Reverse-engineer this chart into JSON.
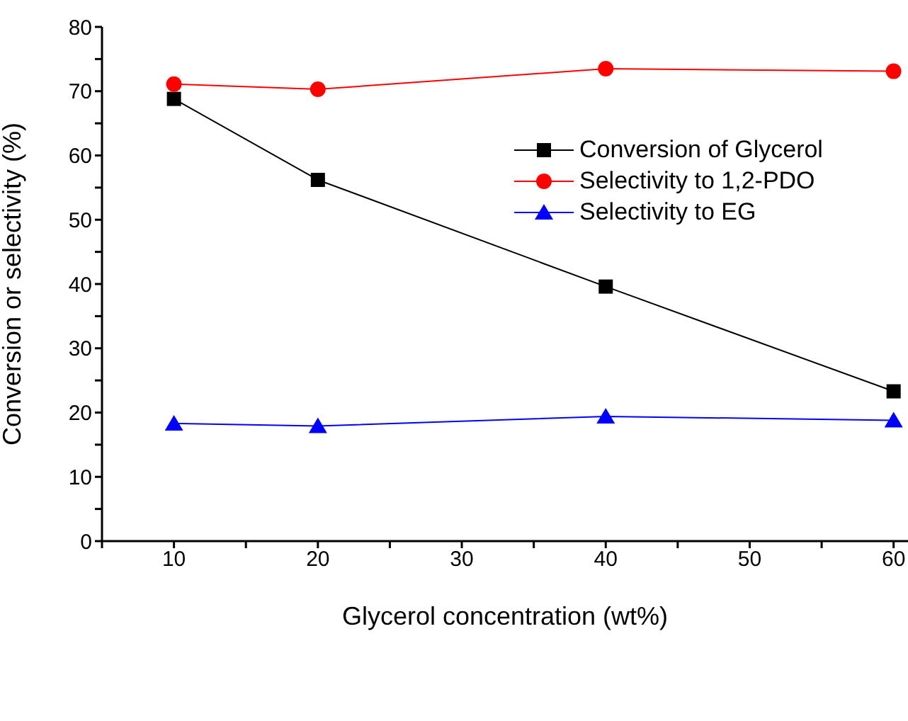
{
  "chart_data": {
    "type": "line",
    "xlabel": "Glycerol concentration (wt%)",
    "ylabel": "Conversion or selectivity (%)",
    "x": [
      10,
      20,
      40,
      60
    ],
    "series": [
      {
        "name": "Conversion of Glycerol",
        "color": "#000000",
        "marker": "square",
        "values": [
          68.8,
          56.2,
          39.6,
          23.3
        ]
      },
      {
        "name": "Selectivity to 1,2-PDO",
        "color": "#ff0000",
        "marker": "circle",
        "values": [
          71.1,
          70.3,
          73.5,
          73.1
        ]
      },
      {
        "name": "Selectivity to EG",
        "color": "#0000ff",
        "marker": "triangle",
        "values": [
          18.3,
          17.9,
          19.4,
          18.8
        ]
      }
    ],
    "xlim": [
      5,
      61
    ],
    "xticks": [
      {
        "value": 5,
        "label": null
      },
      10,
      {
        "value": 15,
        "label": null
      },
      20,
      {
        "value": 25,
        "label": null
      },
      30,
      {
        "value": 35,
        "label": null
      },
      40,
      {
        "value": 45,
        "label": null
      },
      50,
      {
        "value": 55,
        "label": null
      },
      60
    ],
    "ylim": [
      0,
      80
    ],
    "yticks": [
      0,
      {
        "value": 5,
        "label": null
      },
      10,
      {
        "value": 15,
        "label": null
      },
      20,
      {
        "value": 25,
        "label": null
      },
      30,
      {
        "value": 35,
        "label": null
      },
      40,
      {
        "value": 45,
        "label": null
      },
      50,
      {
        "value": 55,
        "label": null
      },
      60,
      {
        "value": 65,
        "label": null
      },
      70,
      {
        "value": 75,
        "label": null
      },
      80
    ],
    "legend": "top right",
    "grid": false,
    "line_style": "solid"
  }
}
